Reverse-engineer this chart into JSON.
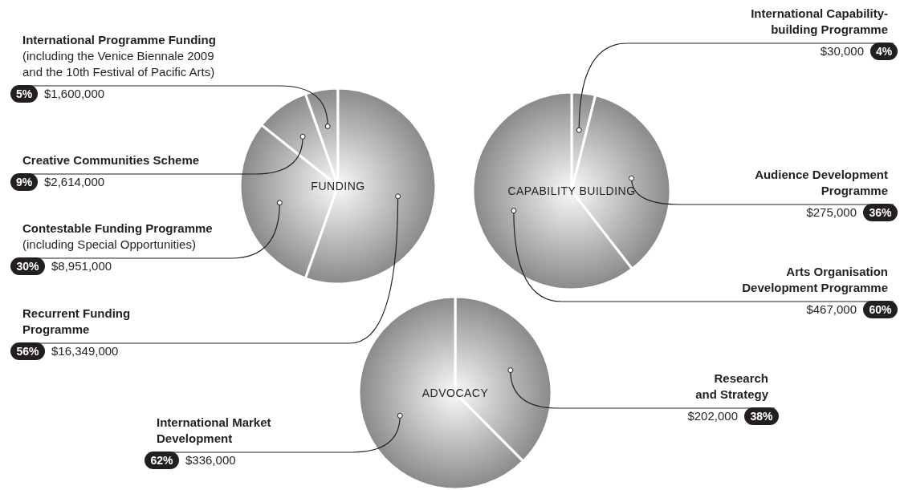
{
  "chart_data": [
    {
      "type": "pie",
      "title": "FUNDING",
      "categories": [
        "International Programme Funding\n(including the Venice Biennale 2009\nand the 10th Festival of Pacific Arts)",
        "Creative Communities Scheme",
        "Contestable Funding Programme\n(including Special Opportunities)",
        "Recurrent Funding\nProgramme"
      ],
      "values": [
        1600000,
        2614000,
        8951000,
        16349000
      ],
      "value_labels": [
        "$1,600,000",
        "$2,614,000",
        "$8,951,000",
        "$16,349,000"
      ],
      "annotations": [
        "5%",
        "9%",
        "30%",
        "56%"
      ],
      "colors": [
        "#8a8a8a",
        "#8a8a8a",
        "#8a8a8a",
        "#8a8a8a"
      ]
    },
    {
      "type": "pie",
      "title": "CAPABILITY BUILDING",
      "categories": [
        "International Capability-\nbuilding Programme",
        "Audience Development\nProgramme",
        "Arts Organisation\nDevelopment Programme"
      ],
      "values": [
        30000,
        275000,
        467000
      ],
      "value_labels": [
        "$30,000",
        "$275,000",
        "$467,000"
      ],
      "annotations": [
        "4%",
        "36%",
        "60%"
      ],
      "colors": [
        "#8a8a8a",
        "#8a8a8a",
        "#8a8a8a"
      ]
    },
    {
      "type": "pie",
      "title": "ADVOCACY",
      "categories": [
        "Research\nand Strategy",
        "International Market\nDevelopment"
      ],
      "values": [
        202000,
        336000
      ],
      "value_labels": [
        "$202,000",
        "$336,000"
      ],
      "annotations": [
        "38%",
        "62%"
      ],
      "colors": [
        "#8a8a8a",
        "#8a8a8a"
      ]
    }
  ]
}
